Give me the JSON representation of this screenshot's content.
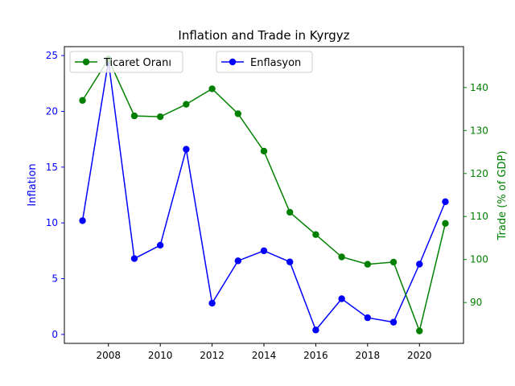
{
  "chart_data": {
    "type": "line",
    "title": "Inflation and Trade in Kyrgyz",
    "xlabel": "",
    "x": [
      2007,
      2008,
      2009,
      2010,
      2011,
      2012,
      2013,
      2014,
      2015,
      2016,
      2017,
      2018,
      2019,
      2020,
      2021
    ],
    "xlim": [
      2006.3,
      2021.7
    ],
    "xticks": [
      2008,
      2010,
      2012,
      2014,
      2016,
      2018,
      2020
    ],
    "left_axis": {
      "label": "Inflation",
      "color": "#0000ff",
      "ylim": [
        -0.8,
        25.8
      ],
      "ticks": [
        0,
        5,
        10,
        15,
        20,
        25
      ]
    },
    "right_axis": {
      "label": "Trade (% of GDP)",
      "color": "#008000",
      "ylim": [
        80.5,
        149.5
      ],
      "ticks": [
        90,
        100,
        110,
        120,
        130,
        140
      ]
    },
    "series": [
      {
        "name": "Enflasyon",
        "axis": "left",
        "color": "#0000ff",
        "values": [
          10.2,
          24.5,
          6.8,
          8.0,
          16.6,
          2.8,
          6.6,
          7.5,
          6.5,
          0.4,
          3.2,
          1.5,
          1.1,
          6.3,
          11.9
        ]
      },
      {
        "name": "Ticaret Oranı",
        "axis": "right",
        "color": "#008000",
        "values": [
          137.0,
          146.6,
          133.4,
          133.2,
          136.1,
          139.7,
          133.9,
          125.2,
          111.0,
          105.8,
          100.6,
          98.9,
          99.4,
          83.4,
          108.4
        ]
      }
    ],
    "legend": {
      "placement": [
        "upper-left",
        "upper-center"
      ]
    },
    "grid": false
  }
}
